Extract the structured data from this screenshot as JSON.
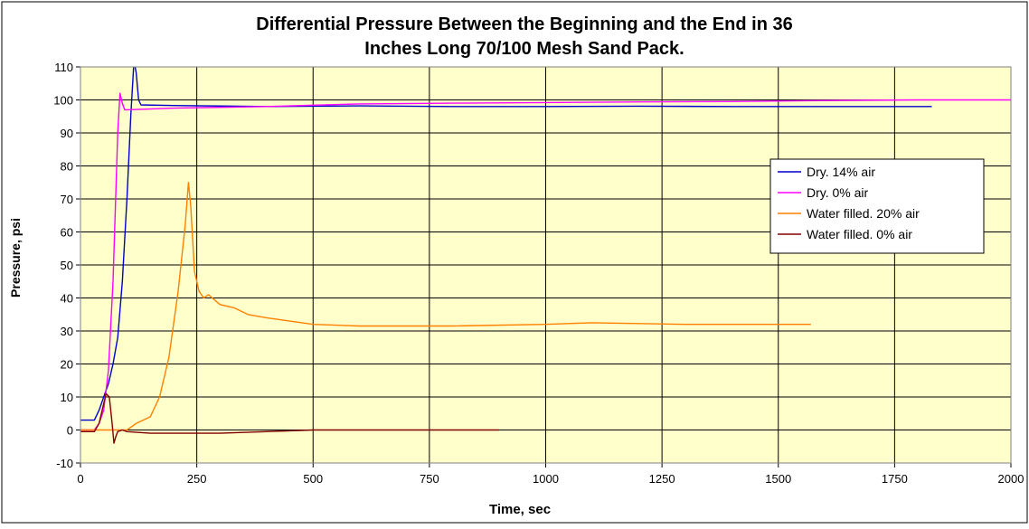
{
  "chart_data": {
    "type": "line",
    "title_line1": "Differential Pressure Between the Beginning and the End in 36",
    "title_line2": "Inches Long 70/100  Mesh Sand Pack.",
    "xlabel": "Time, sec",
    "ylabel": "Pressure, psi",
    "xlim": [
      0,
      2000
    ],
    "ylim": [
      -10,
      110
    ],
    "x_ticks": [
      0,
      250,
      500,
      750,
      1000,
      1250,
      1500,
      1750,
      2000
    ],
    "y_ticks": [
      -10,
      0,
      10,
      20,
      30,
      40,
      50,
      60,
      70,
      80,
      90,
      100,
      110
    ],
    "grid": true,
    "plot_background": "#ffffcc",
    "legend_position": "right-middle",
    "series": [
      {
        "name": "Dry. 14% air",
        "color": "#0000cc",
        "x": [
          0,
          20,
          30,
          40,
          50,
          60,
          70,
          80,
          90,
          100,
          108,
          115,
          120,
          125,
          130,
          200,
          400,
          600,
          800,
          1000,
          1200,
          1400,
          1600,
          1830
        ],
        "y": [
          3,
          3,
          3,
          6,
          10,
          14,
          20,
          28,
          45,
          70,
          95,
          112,
          108,
          100,
          98.5,
          98.3,
          98,
          98.2,
          98,
          98,
          98.1,
          98,
          98,
          98
        ]
      },
      {
        "name": "Dry. 0% air",
        "color": "#ff00ff",
        "x": [
          0,
          30,
          40,
          50,
          60,
          70,
          80,
          85,
          90,
          95,
          100,
          200,
          400,
          600,
          800,
          1000,
          1200,
          1400,
          1600,
          1800,
          2000
        ],
        "y": [
          0,
          0,
          2,
          6,
          18,
          45,
          90,
          102,
          99,
          97,
          97,
          97.5,
          98,
          98.8,
          99,
          99.2,
          99.4,
          99.5,
          99.8,
          100,
          100
        ]
      },
      {
        "name": "Water filled. 20% air",
        "color": "#ff8000",
        "x": [
          0,
          50,
          80,
          100,
          120,
          150,
          170,
          190,
          210,
          225,
          232,
          237,
          245,
          255,
          265,
          275,
          300,
          330,
          360,
          400,
          450,
          500,
          600,
          800,
          1000,
          1100,
          1300,
          1500,
          1570
        ],
        "y": [
          0,
          0,
          0,
          0,
          2,
          4,
          10,
          22,
          42,
          62,
          75,
          68,
          48,
          42,
          40,
          41,
          38,
          37,
          35,
          34,
          33,
          32,
          31.5,
          31.5,
          32,
          32.5,
          32,
          32,
          32
        ]
      },
      {
        "name": "Water filled. 0% air",
        "color": "#800000",
        "x": [
          0,
          30,
          40,
          50,
          55,
          62,
          68,
          72,
          76,
          80,
          90,
          100,
          150,
          200,
          300,
          400,
          500,
          600,
          700,
          800,
          900
        ],
        "y": [
          -0.5,
          -0.5,
          2,
          8,
          11,
          10,
          2,
          -4,
          -2,
          -0.5,
          0,
          -0.5,
          -1,
          -1,
          -1,
          -0.5,
          0,
          0,
          0,
          0,
          0
        ]
      }
    ]
  }
}
